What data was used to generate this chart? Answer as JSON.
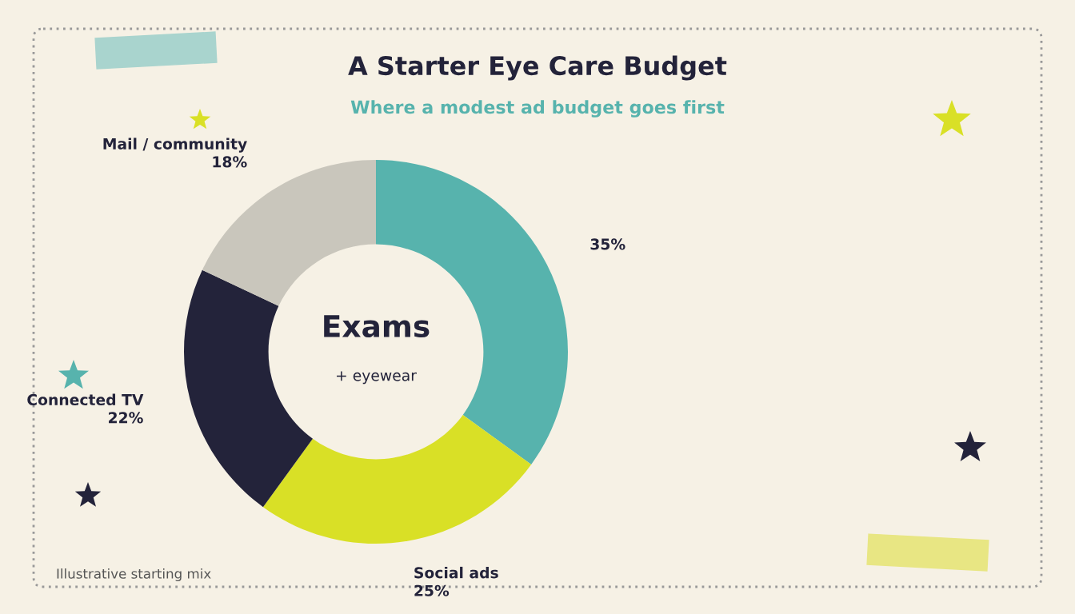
{
  "chart_data": {
    "type": "donut",
    "title": "A Starter Eye Care Budget",
    "subtitle": "Where a modest ad budget goes first",
    "categories": [
      null,
      "Social ads",
      "Connected TV",
      "Mail / community"
    ],
    "values": [
      35,
      25,
      22,
      18
    ],
    "colors": [
      "#57b3ad",
      "#d9e026",
      "#23233a",
      "#c9c6bc"
    ],
    "value_labels": [
      "35%",
      "25%",
      "22%",
      "18%"
    ],
    "annotations": [
      "Exams",
      "+ eyewear",
      "Illustrative starting mix"
    ]
  }
}
